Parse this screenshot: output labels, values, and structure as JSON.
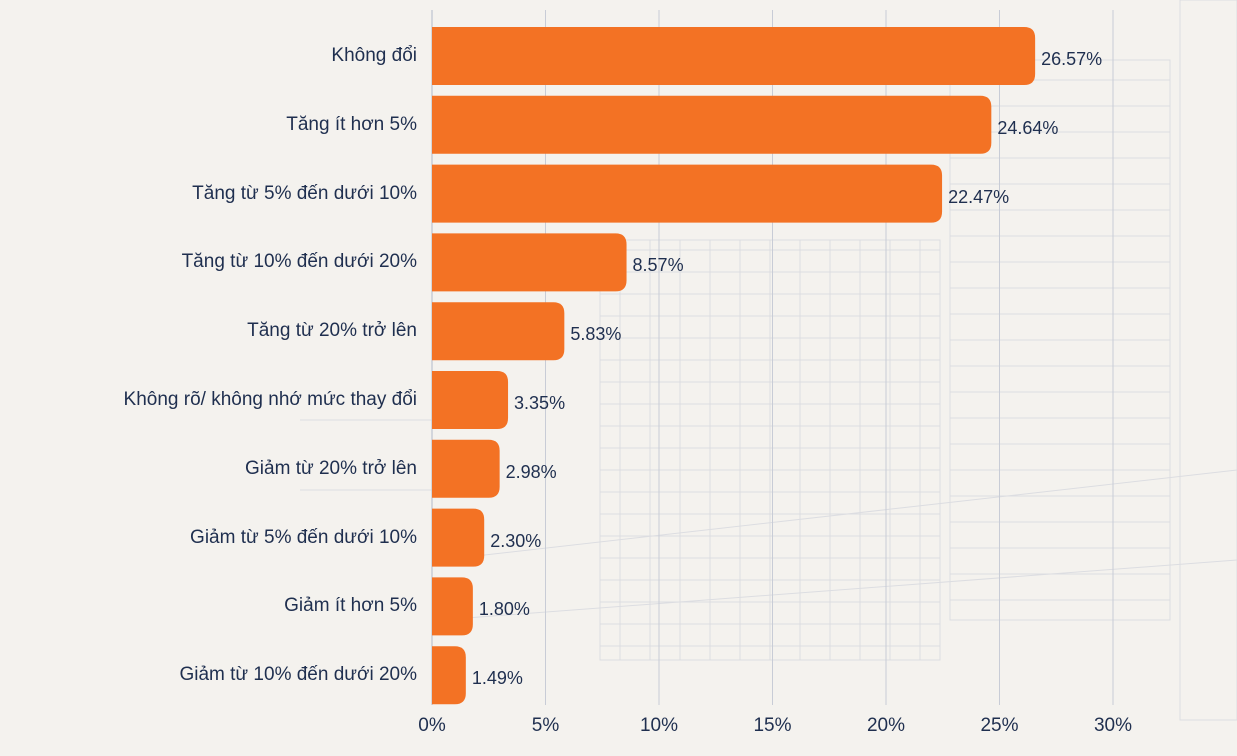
{
  "chart_data": {
    "type": "bar",
    "orientation": "horizontal",
    "categories": [
      "Không đổi",
      "Tăng ít hơn 5%",
      "Tăng từ 5% đến dưới 10%",
      "Tăng từ 10% đến dưới 20%",
      "Tăng từ 20% trở lên",
      "Không rõ/ không nhớ mức thay đổi",
      "Giảm từ 20% trở lên",
      "Giảm từ 5% đến dưới 10%",
      "Giảm ít hơn 5%",
      "Giảm từ 10% đến dưới 20%"
    ],
    "values": [
      26.57,
      24.64,
      22.47,
      8.57,
      5.83,
      3.35,
      2.98,
      2.3,
      1.8,
      1.49
    ],
    "value_labels": [
      "26.57%",
      "24.64%",
      "22.47%",
      "8.57%",
      "5.83%",
      "3.35%",
      "2.98%",
      "2.30%",
      "1.80%",
      "1.49%"
    ],
    "x_ticks": [
      "0%",
      "5%",
      "10%",
      "15%",
      "20%",
      "25%",
      "30%"
    ],
    "xlim": [
      0,
      30
    ],
    "grid": true,
    "colors": {
      "bar": "#f37224",
      "text": "#1f2f4f",
      "grid": "#c8ccd6"
    }
  }
}
